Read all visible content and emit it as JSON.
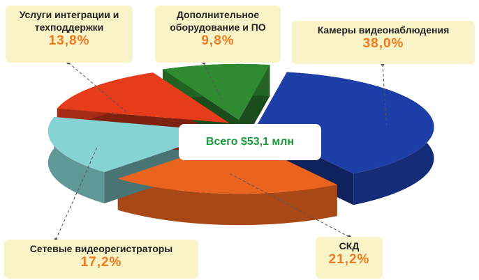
{
  "chart_data": {
    "type": "pie",
    "annotation": "Всего $53,1 млн",
    "categories": [
      "Камеры видеонаблюдения",
      "СКД",
      "Сетевые видеорегистраторы",
      "Услуги интеграции и техподдержки",
      "Дополнительное оборудование и ПО"
    ],
    "values": [
      38.0,
      21.2,
      17.2,
      13.8,
      9.8
    ],
    "value_labels": [
      "38,0%",
      "21,2%",
      "17,2%",
      "13,8%",
      "9,8%"
    ],
    "colors": [
      "#1d3ea6",
      "#ea6420",
      "#86d3d3",
      "#e63c1c",
      "#2f8a32"
    ]
  }
}
